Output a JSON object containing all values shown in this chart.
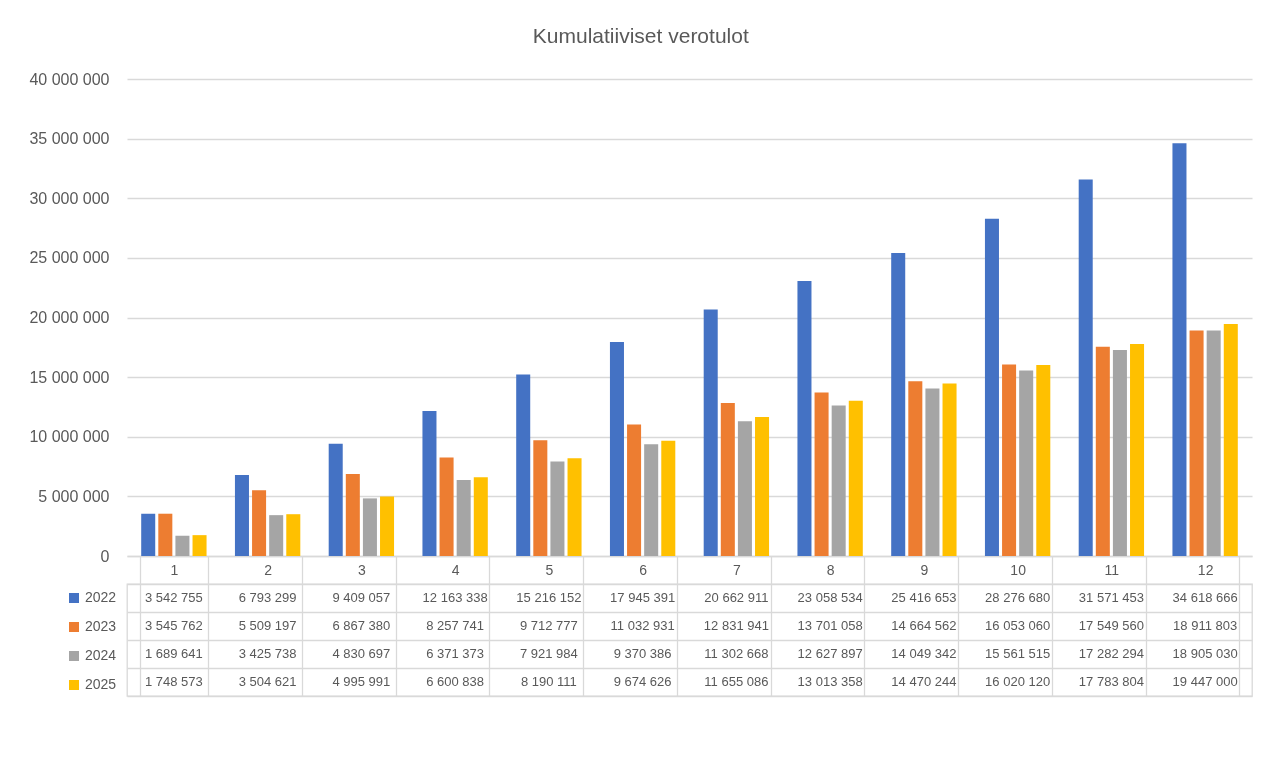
{
  "chart_data": {
    "type": "bar",
    "title": "Kumulatiiviset verotulot",
    "categories": [
      "1",
      "2",
      "3",
      "4",
      "5",
      "6",
      "7",
      "8",
      "9",
      "10",
      "11",
      "12"
    ],
    "series": [
      {
        "name": "2022",
        "color": "#4472c4",
        "values": [
          3542755,
          6793299,
          9409057,
          12163338,
          15216152,
          17945391,
          20662911,
          23058534,
          25416653,
          28276680,
          31571453,
          34618666
        ]
      },
      {
        "name": "2023",
        "color": "#ed7d31",
        "values": [
          3545762,
          5509197,
          6867380,
          8257741,
          9712777,
          11032931,
          12831941,
          13701058,
          14664562,
          16053060,
          17549560,
          18911803
        ]
      },
      {
        "name": "2024",
        "color": "#a5a5a5",
        "values": [
          1689641,
          3425738,
          4830697,
          6371373,
          7921984,
          9370386,
          11302668,
          12627897,
          14049342,
          15561515,
          17282294,
          18905030
        ]
      },
      {
        "name": "2025",
        "color": "#ffc000",
        "values": [
          1748573,
          3504621,
          4995991,
          6600838,
          8190111,
          9674626,
          11655086,
          13013358,
          14470244,
          16020120,
          17783804,
          19447000
        ]
      }
    ],
    "ylim": [
      0,
      40000000
    ],
    "yticks": [
      0,
      5000000,
      10000000,
      15000000,
      20000000,
      25000000,
      30000000,
      35000000,
      40000000
    ],
    "grid": "y",
    "legend": "bottom",
    "data_labels": true
  }
}
